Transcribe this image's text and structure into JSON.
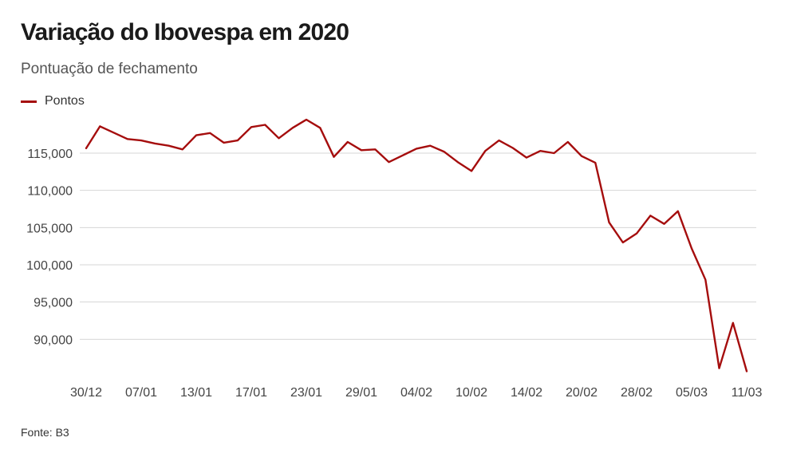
{
  "header": {
    "title": "Variação do Ibovespa em 2020",
    "subtitle": "Pontuação de fechamento"
  },
  "legend": {
    "label": "Pontos",
    "color": "#a50d0d"
  },
  "source": "Fonte: B3",
  "chart_data": {
    "type": "line",
    "title": "Variação do Ibovespa em 2020",
    "subtitle": "Pontuação de fechamento",
    "xlabel": "",
    "ylabel": "",
    "ylim": [
      85000,
      119500
    ],
    "grid": true,
    "legend_position": "top-left",
    "yticks": [
      90000,
      95000,
      100000,
      105000,
      110000,
      115000
    ],
    "ytick_labels": [
      "90,000",
      "95,000",
      "100,000",
      "105,000",
      "110,000",
      "115,000"
    ],
    "xticks": [
      {
        "index": 0,
        "label": "30/12"
      },
      {
        "index": 4,
        "label": "07/01"
      },
      {
        "index": 8,
        "label": "13/01"
      },
      {
        "index": 12,
        "label": "17/01"
      },
      {
        "index": 16,
        "label": "23/01"
      },
      {
        "index": 20,
        "label": "29/01"
      },
      {
        "index": 24,
        "label": "04/02"
      },
      {
        "index": 28,
        "label": "10/02"
      },
      {
        "index": 32,
        "label": "14/02"
      },
      {
        "index": 36,
        "label": "20/02"
      },
      {
        "index": 40,
        "label": "28/02"
      },
      {
        "index": 44,
        "label": "05/03"
      },
      {
        "index": 48,
        "label": "11/03"
      }
    ],
    "series": [
      {
        "name": "Pontos",
        "color": "#a50d0d",
        "values": [
          115650,
          118600,
          117750,
          116900,
          116700,
          116300,
          116000,
          115500,
          117400,
          117700,
          116400,
          116700,
          118500,
          118800,
          117000,
          118400,
          119500,
          118400,
          114500,
          116500,
          115400,
          115500,
          113800,
          114700,
          115600,
          116000,
          115200,
          113800,
          112600,
          115300,
          116700,
          115700,
          114400,
          115300,
          115000,
          116500,
          114600,
          113700,
          105700,
          103000,
          104200,
          106600,
          105500,
          107200,
          102200,
          98000,
          86100,
          92200,
          85700
        ]
      }
    ]
  }
}
